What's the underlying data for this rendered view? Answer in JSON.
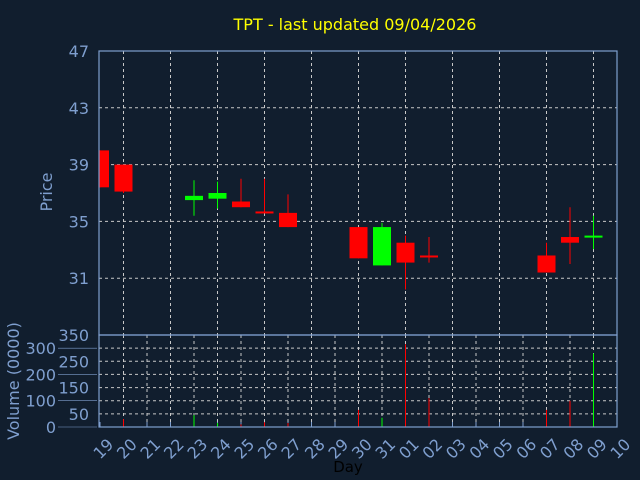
{
  "chart_data": {
    "type": "candlestick",
    "title": "TPT - last updated 09/04/2026",
    "xlabel": "Day",
    "price_ylabel": "Price",
    "volume_ylabel": "Volume (0000)",
    "x_tick_labels": [
      "19",
      "20",
      "21",
      "22",
      "23",
      "24",
      "25",
      "26",
      "27",
      "28",
      "29",
      "30",
      "31",
      "01",
      "02",
      "03",
      "04",
      "05",
      "06",
      "07",
      "08",
      "09",
      "10"
    ],
    "price_ticks": [
      47,
      43,
      39,
      35,
      31
    ],
    "price_ylim": [
      27,
      47
    ],
    "volume_ticks": [
      350,
      300,
      250,
      200,
      150,
      100,
      50,
      0
    ],
    "volume_ylim": [
      0,
      350
    ],
    "candles": [
      {
        "day": "19",
        "open": 40.0,
        "high": 40.0,
        "low": 37.4,
        "close": 37.4,
        "volume": 0
      },
      {
        "day": "20",
        "open": 39.0,
        "high": 39.0,
        "low": 37.0,
        "close": 37.1,
        "volume": 30
      },
      {
        "day": "23",
        "open": 36.5,
        "high": 37.9,
        "low": 35.4,
        "close": 36.8,
        "volume": 45
      },
      {
        "day": "24",
        "open": 36.6,
        "high": 37.8,
        "low": 35.9,
        "close": 37.0,
        "volume": 15
      },
      {
        "day": "25",
        "open": 36.4,
        "high": 38.0,
        "low": 36.0,
        "close": 36.0,
        "volume": 10
      },
      {
        "day": "26",
        "open": 35.7,
        "high": 38.0,
        "low": 35.6,
        "close": 35.6,
        "volume": 18
      },
      {
        "day": "27",
        "open": 35.6,
        "high": 36.9,
        "low": 34.6,
        "close": 34.6,
        "volume": 15
      },
      {
        "day": "30",
        "open": 34.6,
        "high": 34.6,
        "low": 32.4,
        "close": 32.4,
        "volume": 65
      },
      {
        "day": "31",
        "open": 31.9,
        "high": 34.9,
        "low": 31.9,
        "close": 34.6,
        "volume": 35
      },
      {
        "day": "01",
        "open": 33.5,
        "high": 34.0,
        "low": 30.2,
        "close": 32.1,
        "volume": 315
      },
      {
        "day": "02",
        "open": 32.6,
        "high": 33.9,
        "low": 32.1,
        "close": 32.5,
        "volume": 110
      },
      {
        "day": "07",
        "open": 32.6,
        "high": 33.5,
        "low": 31.4,
        "close": 31.4,
        "volume": 65
      },
      {
        "day": "08",
        "open": 33.9,
        "high": 36.0,
        "low": 32.0,
        "close": 33.5,
        "volume": 100
      },
      {
        "day": "09",
        "open": 33.95,
        "high": 35.4,
        "low": 33.05,
        "close": 34.0,
        "volume": 280
      }
    ],
    "colors": {
      "up": "#00ff00",
      "down": "#ff0000",
      "title": "#ffff00",
      "axis": "#7f9fcf",
      "background": "#111e2e"
    }
  }
}
